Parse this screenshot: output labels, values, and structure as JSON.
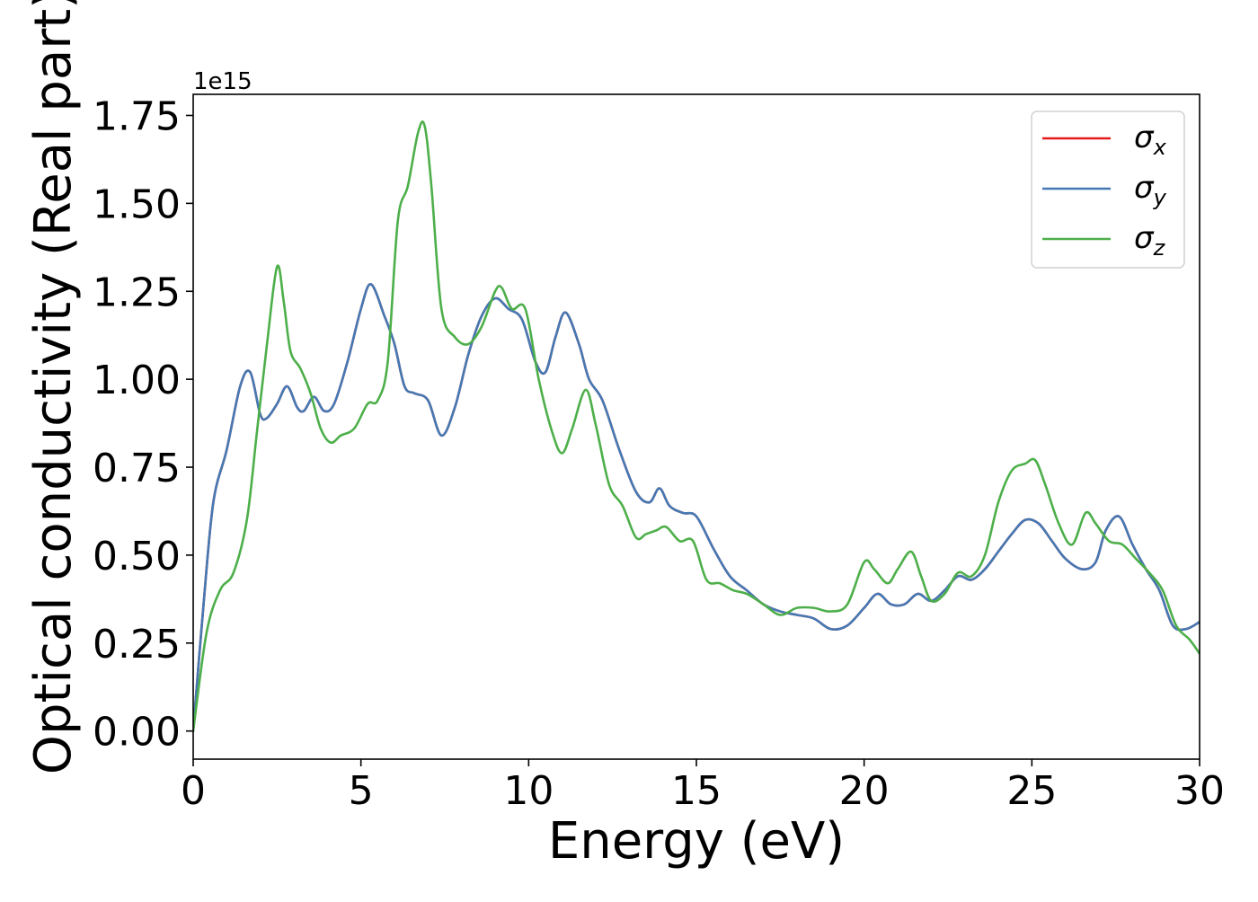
{
  "chart_data": {
    "type": "line",
    "xlabel": "Energy (eV)",
    "ylabel": "Optical conductivity (Real part)",
    "y_offset_label": "1e15",
    "y_scale_factor": 1000000000000000.0,
    "xlim": [
      0,
      30
    ],
    "ylim": [
      -0.08,
      1.81
    ],
    "xticks": [
      0,
      5,
      10,
      15,
      20,
      25,
      30
    ],
    "xtick_labels": [
      "0",
      "5",
      "10",
      "15",
      "20",
      "25",
      "30"
    ],
    "yticks": [
      0.0,
      0.25,
      0.5,
      0.75,
      1.0,
      1.25,
      1.5,
      1.75
    ],
    "ytick_labels": [
      "0.00",
      "0.25",
      "0.50",
      "0.75",
      "1.00",
      "1.25",
      "1.50",
      "1.75"
    ],
    "grid": false,
    "legend_position": "top-right",
    "series": [
      {
        "name": "σx",
        "legend_symbol": "σ",
        "legend_subscript": "x",
        "color": "#e41a1c",
        "x": [
          0,
          0.3,
          0.6,
          1.0,
          1.4,
          1.7,
          2.0,
          2.2,
          2.5,
          2.8,
          3.1,
          3.3,
          3.6,
          3.9,
          4.2,
          4.6,
          5.0,
          5.3,
          5.7,
          6.0,
          6.3,
          6.6,
          7.0,
          7.4,
          7.8,
          8.2,
          8.6,
          9.0,
          9.4,
          9.8,
          10.2,
          10.5,
          10.8,
          11.1,
          11.5,
          11.8,
          12.2,
          12.7,
          13.2,
          13.6,
          13.9,
          14.2,
          14.6,
          15.0,
          15.5,
          16.0,
          16.5,
          17.0,
          17.5,
          18.0,
          18.5,
          19.0,
          19.5,
          20.0,
          20.4,
          20.8,
          21.2,
          21.6,
          22.0,
          22.4,
          22.8,
          23.2,
          23.6,
          24.0,
          24.4,
          24.8,
          25.2,
          25.6,
          26.0,
          26.5,
          26.9,
          27.2,
          27.6,
          28.0,
          28.4,
          28.8,
          29.2,
          29.6,
          30.0
        ],
        "values": [
          0.0,
          0.35,
          0.65,
          0.8,
          0.98,
          1.02,
          0.9,
          0.89,
          0.93,
          0.98,
          0.92,
          0.91,
          0.95,
          0.91,
          0.93,
          1.05,
          1.2,
          1.27,
          1.18,
          1.1,
          0.98,
          0.96,
          0.94,
          0.84,
          0.92,
          1.07,
          1.18,
          1.23,
          1.2,
          1.17,
          1.05,
          1.02,
          1.12,
          1.19,
          1.1,
          1.0,
          0.94,
          0.8,
          0.68,
          0.65,
          0.69,
          0.64,
          0.62,
          0.61,
          0.52,
          0.44,
          0.4,
          0.36,
          0.34,
          0.33,
          0.32,
          0.29,
          0.3,
          0.35,
          0.39,
          0.36,
          0.36,
          0.39,
          0.37,
          0.4,
          0.44,
          0.43,
          0.46,
          0.51,
          0.56,
          0.6,
          0.59,
          0.54,
          0.49,
          0.46,
          0.48,
          0.57,
          0.61,
          0.53,
          0.46,
          0.4,
          0.3,
          0.29,
          0.31
        ]
      },
      {
        "name": "σy",
        "legend_symbol": "σ",
        "legend_subscript": "y",
        "color": "#4479b4",
        "x": [
          0,
          0.3,
          0.6,
          1.0,
          1.4,
          1.7,
          2.0,
          2.2,
          2.5,
          2.8,
          3.1,
          3.3,
          3.6,
          3.9,
          4.2,
          4.6,
          5.0,
          5.3,
          5.7,
          6.0,
          6.3,
          6.6,
          7.0,
          7.4,
          7.8,
          8.2,
          8.6,
          9.0,
          9.4,
          9.8,
          10.2,
          10.5,
          10.8,
          11.1,
          11.5,
          11.8,
          12.2,
          12.7,
          13.2,
          13.6,
          13.9,
          14.2,
          14.6,
          15.0,
          15.5,
          16.0,
          16.5,
          17.0,
          17.5,
          18.0,
          18.5,
          19.0,
          19.5,
          20.0,
          20.4,
          20.8,
          21.2,
          21.6,
          22.0,
          22.4,
          22.8,
          23.2,
          23.6,
          24.0,
          24.4,
          24.8,
          25.2,
          25.6,
          26.0,
          26.5,
          26.9,
          27.2,
          27.6,
          28.0,
          28.4,
          28.8,
          29.2,
          29.6,
          30.0
        ],
        "values": [
          0.0,
          0.35,
          0.65,
          0.8,
          0.98,
          1.02,
          0.9,
          0.89,
          0.93,
          0.98,
          0.92,
          0.91,
          0.95,
          0.91,
          0.93,
          1.05,
          1.2,
          1.27,
          1.18,
          1.1,
          0.98,
          0.96,
          0.94,
          0.84,
          0.92,
          1.07,
          1.18,
          1.23,
          1.2,
          1.17,
          1.05,
          1.02,
          1.12,
          1.19,
          1.1,
          1.0,
          0.94,
          0.8,
          0.68,
          0.65,
          0.69,
          0.64,
          0.62,
          0.61,
          0.52,
          0.44,
          0.4,
          0.36,
          0.34,
          0.33,
          0.32,
          0.29,
          0.3,
          0.35,
          0.39,
          0.36,
          0.36,
          0.39,
          0.37,
          0.4,
          0.44,
          0.43,
          0.46,
          0.51,
          0.56,
          0.6,
          0.59,
          0.54,
          0.49,
          0.46,
          0.48,
          0.57,
          0.61,
          0.53,
          0.46,
          0.4,
          0.3,
          0.29,
          0.31
        ]
      },
      {
        "name": "σz",
        "legend_symbol": "σ",
        "legend_subscript": "z",
        "color": "#4daf4a",
        "x": [
          0,
          0.4,
          0.8,
          1.2,
          1.6,
          1.9,
          2.2,
          2.5,
          2.7,
          2.9,
          3.2,
          3.5,
          3.8,
          4.1,
          4.4,
          4.8,
          5.2,
          5.5,
          5.8,
          6.1,
          6.4,
          6.7,
          6.9,
          7.1,
          7.4,
          7.8,
          8.2,
          8.6,
          9.0,
          9.2,
          9.5,
          9.9,
          10.3,
          10.7,
          11.0,
          11.3,
          11.7,
          12.0,
          12.4,
          12.8,
          13.2,
          13.5,
          13.8,
          14.1,
          14.5,
          14.9,
          15.3,
          15.7,
          16.1,
          16.5,
          17.0,
          17.5,
          18.0,
          18.5,
          19.0,
          19.5,
          20.0,
          20.3,
          20.7,
          21.0,
          21.4,
          21.7,
          22.0,
          22.4,
          22.8,
          23.2,
          23.6,
          24.0,
          24.4,
          24.8,
          25.1,
          25.4,
          25.8,
          26.2,
          26.6,
          26.9,
          27.3,
          27.7,
          28.1,
          28.5,
          28.9,
          29.3,
          29.7,
          30.0
        ],
        "values": [
          0.0,
          0.28,
          0.4,
          0.45,
          0.6,
          0.85,
          1.1,
          1.32,
          1.22,
          1.08,
          1.03,
          0.96,
          0.86,
          0.82,
          0.84,
          0.86,
          0.93,
          0.94,
          1.05,
          1.45,
          1.55,
          1.7,
          1.72,
          1.55,
          1.2,
          1.12,
          1.1,
          1.15,
          1.25,
          1.26,
          1.2,
          1.2,
          1.0,
          0.85,
          0.79,
          0.86,
          0.97,
          0.87,
          0.7,
          0.64,
          0.55,
          0.56,
          0.57,
          0.58,
          0.54,
          0.54,
          0.43,
          0.42,
          0.4,
          0.39,
          0.36,
          0.33,
          0.35,
          0.35,
          0.34,
          0.36,
          0.48,
          0.46,
          0.42,
          0.46,
          0.51,
          0.44,
          0.37,
          0.39,
          0.45,
          0.44,
          0.5,
          0.65,
          0.74,
          0.76,
          0.77,
          0.7,
          0.59,
          0.53,
          0.62,
          0.59,
          0.54,
          0.53,
          0.49,
          0.45,
          0.4,
          0.3,
          0.26,
          0.22
        ]
      }
    ]
  }
}
